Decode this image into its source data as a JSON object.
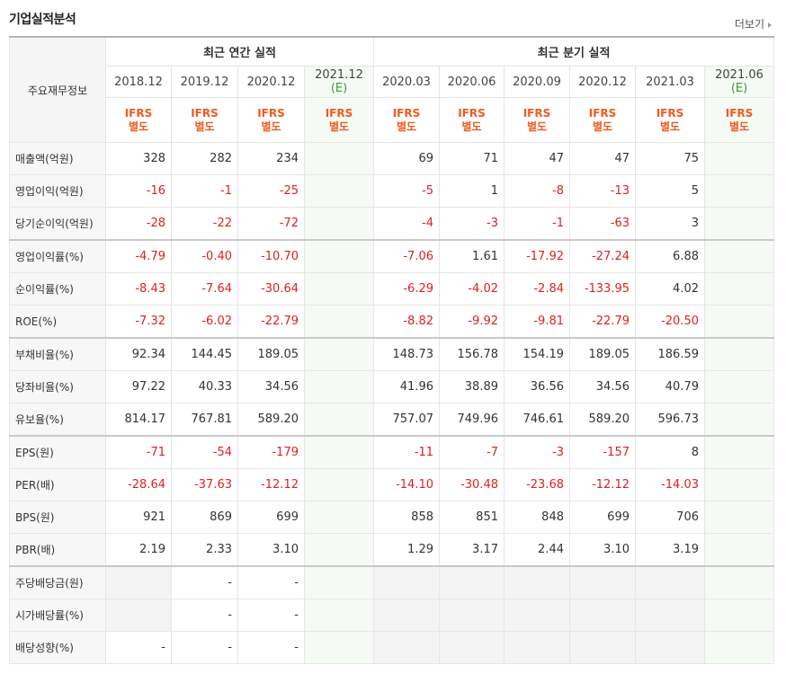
{
  "header": {
    "title": "기업실적분석",
    "more": "더보기"
  },
  "table": {
    "corner": "주요재무정보",
    "groups": [
      {
        "label": "최근 연간 실적",
        "span": 4
      },
      {
        "label": "최근 분기 실적",
        "span": 6
      }
    ],
    "columns": [
      {
        "date": "2018.12",
        "basis": "IFRS",
        "standard": "별도"
      },
      {
        "date": "2019.12",
        "basis": "IFRS",
        "standard": "별도"
      },
      {
        "date": "2020.12",
        "basis": "IFRS",
        "standard": "별도"
      },
      {
        "date": "2021.12",
        "note": "(E)",
        "basis": "IFRS",
        "standard": "별도"
      },
      {
        "date": "2020.03",
        "basis": "IFRS",
        "standard": "별도"
      },
      {
        "date": "2020.06",
        "basis": "IFRS",
        "standard": "별도"
      },
      {
        "date": "2020.09",
        "basis": "IFRS",
        "standard": "별도"
      },
      {
        "date": "2020.12",
        "basis": "IFRS",
        "standard": "별도"
      },
      {
        "date": "2021.03",
        "basis": "IFRS",
        "standard": "별도"
      },
      {
        "date": "2021.06",
        "note": "(E)",
        "basis": "IFRS",
        "standard": "별도"
      }
    ],
    "rows": [
      {
        "label": "매출액(억원)",
        "values": [
          "328",
          "282",
          "234",
          null,
          "69",
          "71",
          "47",
          "47",
          "75",
          null
        ]
      },
      {
        "label": "영업이익(억원)",
        "values": [
          "-16",
          "-1",
          "-25",
          null,
          "-5",
          "1",
          "-8",
          "-13",
          "5",
          null
        ]
      },
      {
        "label": "당기순이익(억원)",
        "values": [
          "-28",
          "-22",
          "-72",
          null,
          "-4",
          "-3",
          "-1",
          "-63",
          "3",
          null
        ]
      },
      {
        "label": "영업이익률(%)",
        "values": [
          "-4.79",
          "-0.40",
          "-10.70",
          null,
          "-7.06",
          "1.61",
          "-17.92",
          "-27.24",
          "6.88",
          null
        ]
      },
      {
        "label": "순이익률(%)",
        "values": [
          "-8.43",
          "-7.64",
          "-30.64",
          null,
          "-6.29",
          "-4.02",
          "-2.84",
          "-133.95",
          "4.02",
          null
        ]
      },
      {
        "label": "ROE(%)",
        "values": [
          "-7.32",
          "-6.02",
          "-22.79",
          null,
          "-8.82",
          "-9.92",
          "-9.81",
          "-22.79",
          "-20.50",
          null
        ]
      },
      {
        "label": "부채비율(%)",
        "values": [
          "92.34",
          "144.45",
          "189.05",
          null,
          "148.73",
          "156.78",
          "154.19",
          "189.05",
          "186.59",
          null
        ]
      },
      {
        "label": "당좌비율(%)",
        "values": [
          "97.22",
          "40.33",
          "34.56",
          null,
          "41.96",
          "38.89",
          "36.56",
          "34.56",
          "40.79",
          null
        ]
      },
      {
        "label": "유보율(%)",
        "values": [
          "814.17",
          "767.81",
          "589.20",
          null,
          "757.07",
          "749.96",
          "746.61",
          "589.20",
          "596.73",
          null
        ]
      },
      {
        "label": "EPS(원)",
        "values": [
          "-71",
          "-54",
          "-179",
          null,
          "-11",
          "-7",
          "-3",
          "-157",
          "8",
          null
        ]
      },
      {
        "label": "PER(배)",
        "values": [
          "-28.64",
          "-37.63",
          "-12.12",
          null,
          "-14.10",
          "-30.48",
          "-23.68",
          "-12.12",
          "-14.03",
          null
        ]
      },
      {
        "label": "BPS(원)",
        "values": [
          "921",
          "869",
          "699",
          null,
          "858",
          "851",
          "848",
          "699",
          "706",
          null
        ]
      },
      {
        "label": "PBR(배)",
        "values": [
          "2.19",
          "2.33",
          "3.10",
          null,
          "1.29",
          "3.17",
          "2.44",
          "3.10",
          "3.19",
          null
        ]
      },
      {
        "label": "주당배당금(원)",
        "values": [
          null,
          "-",
          "-",
          null,
          null,
          null,
          null,
          null,
          null,
          null
        ]
      },
      {
        "label": "시가배당률(%)",
        "values": [
          null,
          "-",
          "-",
          null,
          null,
          null,
          null,
          null,
          null,
          null
        ]
      },
      {
        "label": "배당성향(%)",
        "values": [
          "-",
          "-",
          "-",
          null,
          null,
          null,
          null,
          null,
          null,
          null
        ]
      }
    ]
  }
}
